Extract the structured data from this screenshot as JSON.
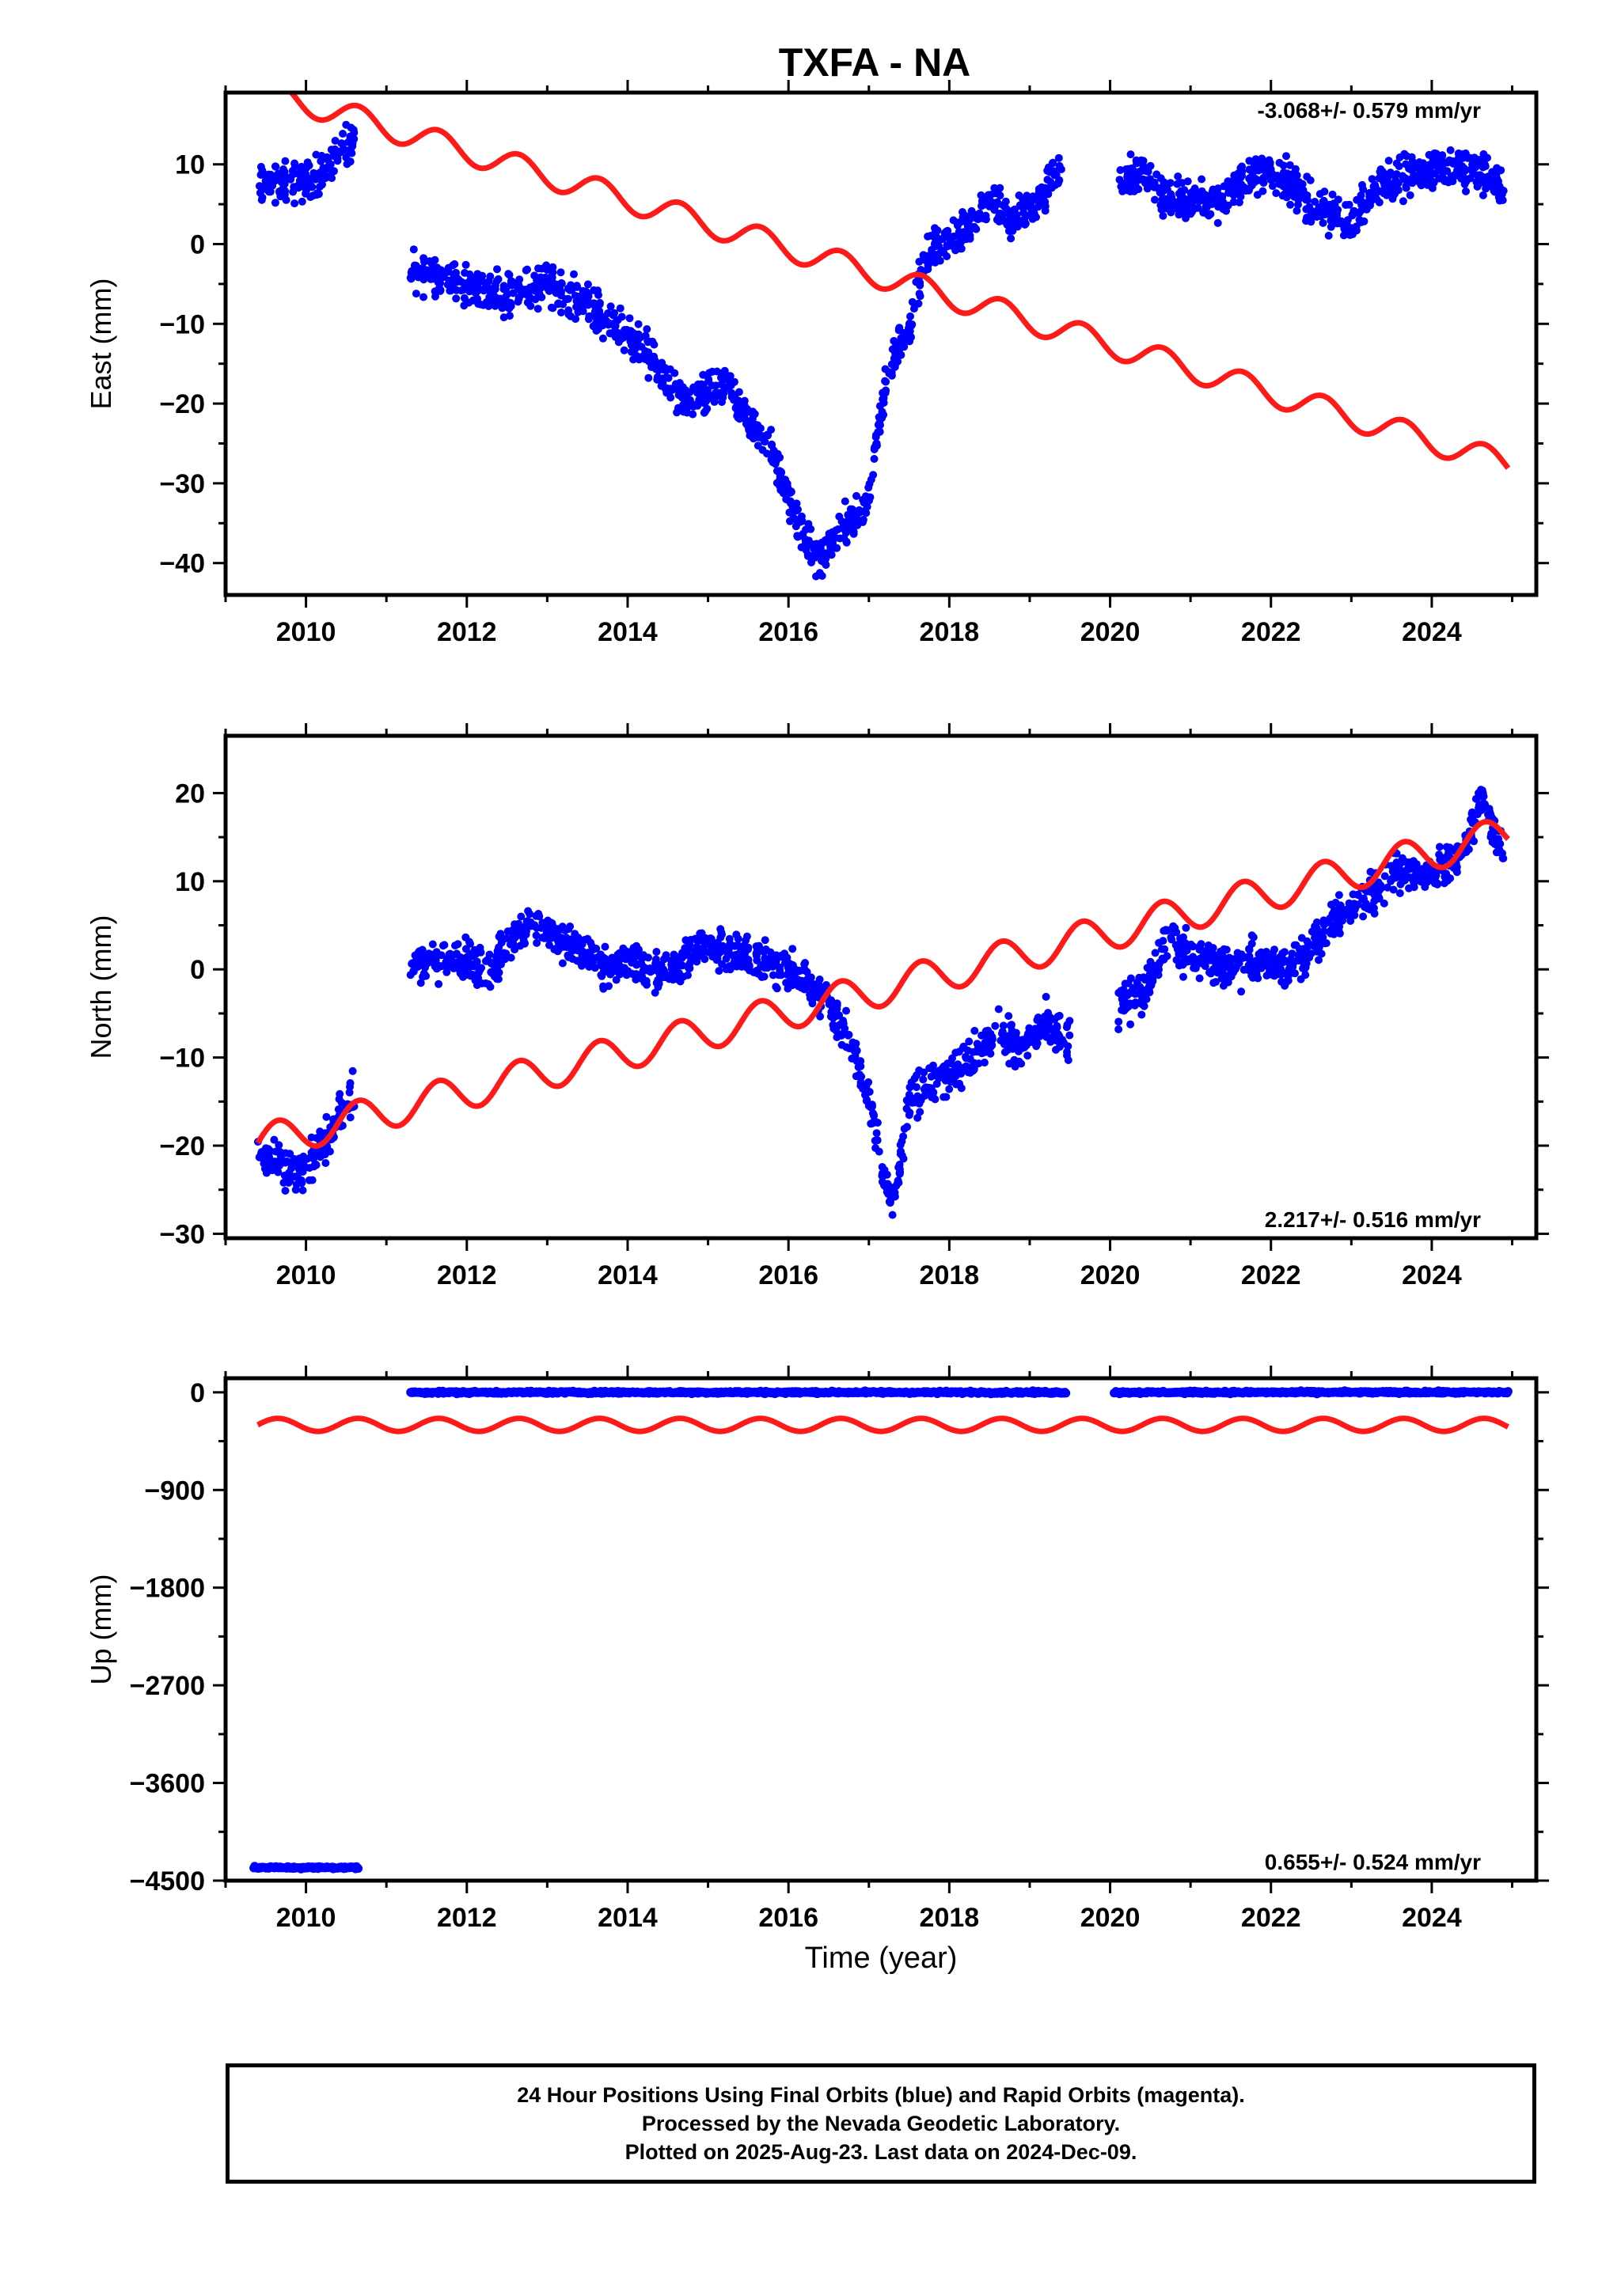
{
  "title": "TXFA - NA",
  "colors": {
    "final_orbits": "#0000ff",
    "model_curve": "#ff1a1a",
    "axes": "#000000"
  },
  "chart_data": [
    {
      "type": "scatter",
      "panel": "east",
      "ylabel": "East (mm)",
      "xlabel": "",
      "xlim": [
        2009.0,
        2025.3
      ],
      "ylim": [
        -44,
        19
      ],
      "xticks": [
        2010,
        2012,
        2014,
        2016,
        2018,
        2020,
        2022,
        2024
      ],
      "yticks": [
        -40,
        -30,
        -20,
        -10,
        0,
        10
      ],
      "rate_label": "-3.068+/- 0.579 mm/yr",
      "rate_position": "top-right",
      "series": [
        {
          "role": "final_orbits",
          "points": [
            [
              2009.4,
              7
            ],
            [
              2009.6,
              8
            ],
            [
              2009.8,
              7.5
            ],
            [
              2010.0,
              8
            ],
            [
              2010.2,
              9
            ],
            [
              2010.4,
              11
            ],
            [
              2010.6,
              13
            ],
            [
              2011.3,
              -3
            ],
            [
              2011.6,
              -4
            ],
            [
              2012.0,
              -5
            ],
            [
              2012.3,
              -6
            ],
            [
              2012.6,
              -6
            ],
            [
              2013.0,
              -5
            ],
            [
              2013.4,
              -7
            ],
            [
              2013.8,
              -10
            ],
            [
              2014.1,
              -12
            ],
            [
              2014.4,
              -16
            ],
            [
              2014.7,
              -20
            ],
            [
              2015.0,
              -19
            ],
            [
              2015.2,
              -18
            ],
            [
              2015.5,
              -22
            ],
            [
              2015.8,
              -26
            ],
            [
              2016.0,
              -32
            ],
            [
              2016.2,
              -37
            ],
            [
              2016.4,
              -40
            ],
            [
              2016.6,
              -36
            ],
            [
              2016.8,
              -35
            ],
            [
              2017.0,
              -32
            ],
            [
              2017.1,
              -24
            ],
            [
              2017.3,
              -14
            ],
            [
              2017.5,
              -10
            ],
            [
              2017.7,
              -2
            ],
            [
              2017.9,
              0
            ],
            [
              2018.2,
              2
            ],
            [
              2018.5,
              6
            ],
            [
              2018.8,
              3
            ],
            [
              2019.1,
              5
            ],
            [
              2019.4,
              10
            ],
            [
              2020.1,
              8
            ],
            [
              2020.4,
              9
            ],
            [
              2020.7,
              6
            ],
            [
              2021.0,
              5
            ],
            [
              2021.4,
              6
            ],
            [
              2021.8,
              9
            ],
            [
              2022.2,
              8
            ],
            [
              2022.6,
              4
            ],
            [
              2023.0,
              3
            ],
            [
              2023.4,
              8
            ],
            [
              2023.8,
              9
            ],
            [
              2024.2,
              10
            ],
            [
              2024.6,
              9
            ],
            [
              2024.9,
              7
            ]
          ]
        },
        {
          "role": "model_curve",
          "trend": [
            2009.4,
            19.5,
            2024.95,
            -27.6
          ],
          "seasonal_amplitude": 1.6
        }
      ]
    },
    {
      "type": "scatter",
      "panel": "north",
      "ylabel": "North (mm)",
      "xlabel": "",
      "xlim": [
        2009.0,
        2025.3
      ],
      "ylim": [
        -30.5,
        26.5
      ],
      "xticks": [
        2010,
        2012,
        2014,
        2016,
        2018,
        2020,
        2022,
        2024
      ],
      "yticks": [
        -30,
        -20,
        -10,
        0,
        10,
        20
      ],
      "rate_label": "2.217+/- 0.516 mm/yr",
      "rate_position": "bottom-right",
      "series": [
        {
          "role": "final_orbits",
          "points": [
            [
              2009.4,
              -21
            ],
            [
              2009.6,
              -22
            ],
            [
              2009.8,
              -23
            ],
            [
              2010.0,
              -23
            ],
            [
              2010.2,
              -20
            ],
            [
              2010.4,
              -17
            ],
            [
              2010.6,
              -14
            ],
            [
              2011.3,
              0
            ],
            [
              2011.6,
              1
            ],
            [
              2012.0,
              1
            ],
            [
              2012.3,
              0
            ],
            [
              2012.6,
              4
            ],
            [
              2012.9,
              5
            ],
            [
              2013.2,
              3
            ],
            [
              2013.5,
              2
            ],
            [
              2013.8,
              0
            ],
            [
              2014.1,
              1
            ],
            [
              2014.4,
              -1
            ],
            [
              2014.7,
              1
            ],
            [
              2015.0,
              3
            ],
            [
              2015.3,
              2
            ],
            [
              2015.6,
              1
            ],
            [
              2015.9,
              0
            ],
            [
              2016.2,
              -1
            ],
            [
              2016.5,
              -4
            ],
            [
              2016.8,
              -9
            ],
            [
              2017.0,
              -15
            ],
            [
              2017.2,
              -24
            ],
            [
              2017.3,
              -27
            ],
            [
              2017.5,
              -15
            ],
            [
              2017.7,
              -13
            ],
            [
              2018.0,
              -12
            ],
            [
              2018.3,
              -10
            ],
            [
              2018.6,
              -7
            ],
            [
              2018.9,
              -9
            ],
            [
              2019.2,
              -6
            ],
            [
              2019.5,
              -8
            ],
            [
              2020.1,
              -4
            ],
            [
              2020.4,
              -3
            ],
            [
              2020.7,
              3
            ],
            [
              2021.0,
              2
            ],
            [
              2021.4,
              0
            ],
            [
              2021.8,
              1
            ],
            [
              2022.2,
              0
            ],
            [
              2022.5,
              2
            ],
            [
              2022.8,
              6
            ],
            [
              2023.2,
              8
            ],
            [
              2023.6,
              11
            ],
            [
              2024.0,
              11
            ],
            [
              2024.4,
              13
            ],
            [
              2024.6,
              20
            ],
            [
              2024.9,
              13
            ]
          ]
        },
        {
          "role": "model_curve",
          "trend": [
            2009.4,
            -19.7,
            2024.95,
            15.4
          ],
          "seasonal_amplitude": 2.0
        }
      ]
    },
    {
      "type": "scatter",
      "panel": "up",
      "ylabel": "Up (mm)",
      "xlabel": "Time (year)",
      "xlim": [
        2009.0,
        2025.3
      ],
      "ylim": [
        -4500,
        130
      ],
      "xticks": [
        2010,
        2012,
        2014,
        2016,
        2018,
        2020,
        2022,
        2024
      ],
      "yticks": [
        -4500,
        -3600,
        -2700,
        -1800,
        -900,
        0
      ],
      "rate_label": "0.655+/- 0.524 mm/yr",
      "rate_position": "bottom-right",
      "series": [
        {
          "role": "final_orbits",
          "segments": [
            {
              "x": [
                2009.35,
                2010.65
              ],
              "y": -4380
            },
            {
              "x": [
                2011.3,
                2019.45
              ],
              "y": 0
            },
            {
              "x": [
                2020.05,
                2024.95
              ],
              "y": 0
            }
          ]
        },
        {
          "role": "model_curve",
          "trend": [
            2009.4,
            -300,
            2024.95,
            -300
          ],
          "seasonal_amplitude": 60
        }
      ]
    }
  ],
  "caption": {
    "line1": "24 Hour Positions Using Final Orbits (blue) and Rapid Orbits (magenta).",
    "line2": "Processed by the Nevada Geodetic Laboratory.",
    "line3": "Plotted on 2025-Aug-23. Last data on 2024-Dec-09."
  }
}
